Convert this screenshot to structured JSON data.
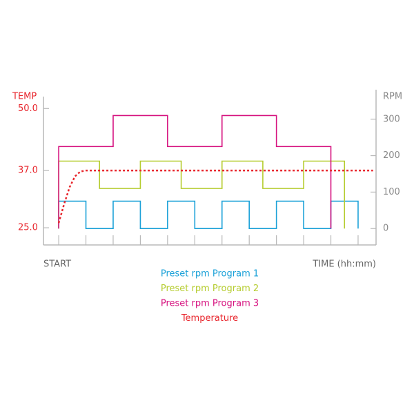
{
  "chart_data": {
    "type": "line",
    "y_label": "TEMP",
    "y2_label": "RPM",
    "x_start_label": "START",
    "x_label": "TIME (hh:mm)",
    "xlim": [
      -0.56,
      11.66
    ],
    "xticks": [
      0,
      1,
      2,
      3,
      4,
      5,
      6,
      7,
      8,
      9,
      10,
      11
    ],
    "ylim": [
      21.4,
      52.5
    ],
    "yticks": [
      {
        "value": 25,
        "label": "25.0"
      },
      {
        "value": 37,
        "label": "37.0"
      },
      {
        "value": 50,
        "label": "50.0"
      }
    ],
    "y_color": "#e8262d",
    "y2lim": [
      -45,
      362
    ],
    "y2ticks": [
      0,
      100,
      200,
      300
    ],
    "y2_color": "#888888",
    "series": [
      {
        "name": "Preset rpm Program 1",
        "color": "#1ba1d8",
        "axis": "y2",
        "style": "solid",
        "x": [
          0,
          0,
          1,
          1,
          2,
          2,
          3,
          3,
          4,
          4,
          5,
          5,
          6,
          6,
          7,
          7,
          8,
          8,
          9,
          9,
          10,
          10,
          11,
          11
        ],
        "values": [
          0,
          75,
          75,
          0,
          0,
          75,
          75,
          0,
          0,
          75,
          75,
          0,
          0,
          75,
          75,
          0,
          0,
          75,
          75,
          0,
          0,
          75,
          75,
          0
        ]
      },
      {
        "name": "Preset rpm Program 2",
        "color": "#b5cc2e",
        "axis": "y2",
        "style": "solid",
        "x": [
          0,
          0,
          1.5,
          1.5,
          3,
          3,
          4.5,
          4.5,
          6,
          6,
          7.5,
          7.5,
          9,
          9,
          10.5,
          10.5
        ],
        "values": [
          0,
          185,
          185,
          110,
          110,
          185,
          185,
          110,
          110,
          185,
          185,
          110,
          110,
          185,
          185,
          0
        ]
      },
      {
        "name": "Preset rpm Program 3",
        "color": "#d6127f",
        "axis": "y2",
        "style": "solid",
        "x": [
          0,
          0,
          2,
          2,
          4,
          4,
          6,
          6,
          8,
          8,
          10,
          10
        ],
        "values": [
          0,
          225,
          225,
          310,
          310,
          225,
          225,
          310,
          310,
          225,
          225,
          0
        ]
      },
      {
        "name": "Temperature",
        "color": "#e8262d",
        "axis": "y",
        "style": "dotted",
        "x": [
          0,
          0.2,
          0.4,
          0.6,
          0.8,
          1.0,
          11.55
        ],
        "values": [
          26,
          30,
          33.5,
          35.8,
          36.8,
          37,
          37
        ]
      }
    ]
  }
}
